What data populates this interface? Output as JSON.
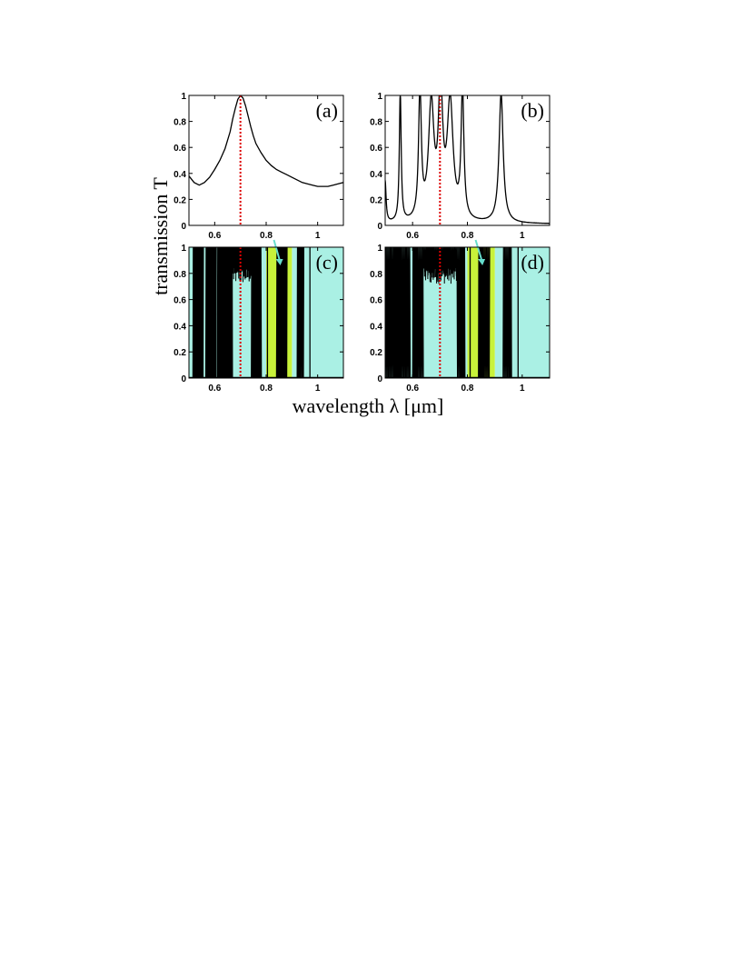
{
  "figure": {
    "ylabel": "transmission T",
    "xlabel": "wavelength λ [μm]"
  },
  "colors": {
    "curve": "#000000",
    "marker": "#dd0000",
    "band_cyan": "#aaf0e4",
    "band_yellow": "#c8f23a",
    "arrow": "#66ddcc"
  },
  "chart_data": [
    {
      "id": "a",
      "type": "line",
      "label": "(a)",
      "xlim": [
        0.5,
        1.1
      ],
      "ylim": [
        0,
        1
      ],
      "xticks": [
        "0.6",
        "0.8",
        "1"
      ],
      "xtick_values": [
        0.6,
        0.8,
        1.0
      ],
      "yticks": [
        "0",
        "0.2",
        "0.4",
        "0.6",
        "0.8",
        "1"
      ],
      "marker_x": 0.7,
      "x": [
        0.5,
        0.52,
        0.54,
        0.56,
        0.58,
        0.6,
        0.62,
        0.64,
        0.66,
        0.67,
        0.68,
        0.69,
        0.7,
        0.71,
        0.72,
        0.73,
        0.74,
        0.75,
        0.76,
        0.78,
        0.8,
        0.82,
        0.84,
        0.86,
        0.88,
        0.9,
        0.92,
        0.94,
        0.96,
        0.98,
        1.0,
        1.02,
        1.04,
        1.06,
        1.08,
        1.1
      ],
      "y": [
        0.38,
        0.33,
        0.31,
        0.33,
        0.37,
        0.43,
        0.5,
        0.59,
        0.72,
        0.82,
        0.9,
        0.97,
        1.0,
        0.98,
        0.92,
        0.84,
        0.76,
        0.69,
        0.63,
        0.56,
        0.5,
        0.46,
        0.43,
        0.41,
        0.39,
        0.37,
        0.35,
        0.33,
        0.32,
        0.31,
        0.3,
        0.3,
        0.3,
        0.31,
        0.32,
        0.33
      ]
    },
    {
      "id": "b",
      "type": "line",
      "label": "(b)",
      "xlim": [
        0.5,
        1.1
      ],
      "ylim": [
        0,
        1
      ],
      "xticks": [
        "0.6",
        "0.8",
        "1"
      ],
      "xtick_values": [
        0.6,
        0.8,
        1.0
      ],
      "yticks": [
        "0",
        "0.2",
        "0.4",
        "0.6",
        "0.8",
        "1"
      ],
      "marker_x": 0.7,
      "baseline": 0.01,
      "peaks": [
        {
          "x": 0.5,
          "w": 0.004,
          "h": 0.32
        },
        {
          "x": 0.555,
          "w": 0.004,
          "h": 1.0
        },
        {
          "x": 0.627,
          "w": 0.006,
          "h": 1.0
        },
        {
          "x": 0.668,
          "w": 0.012,
          "h": 0.88
        },
        {
          "x": 0.702,
          "w": 0.009,
          "h": 1.0
        },
        {
          "x": 0.737,
          "w": 0.013,
          "h": 0.9
        },
        {
          "x": 0.782,
          "w": 0.006,
          "h": 1.0
        },
        {
          "x": 0.923,
          "w": 0.009,
          "h": 1.0
        }
      ]
    },
    {
      "id": "c",
      "type": "line",
      "label": "(c)",
      "xlim": [
        0.5,
        1.1
      ],
      "ylim": [
        0,
        1
      ],
      "xticks": [
        "0.6",
        "0.8",
        "1"
      ],
      "xtick_values": [
        0.6,
        0.8,
        1.0
      ],
      "yticks": [
        "0",
        "0.2",
        "0.4",
        "0.6",
        "0.8",
        "1"
      ],
      "marker_x": 0.7,
      "bands_cyan": [
        [
          0.5,
          0.8
        ],
        [
          0.9,
          1.1
        ]
      ],
      "bands_yellow": [
        [
          0.8,
          0.9
        ]
      ],
      "dense_ranges": [
        [
          0.515,
          0.555
        ],
        [
          0.565,
          0.605
        ],
        [
          0.61,
          0.78
        ],
        [
          0.84,
          0.88
        ],
        [
          0.92,
          0.945
        ]
      ],
      "dense_floor": [
        [
          0.67,
          0.74,
          0.72
        ]
      ],
      "vlines": [
        0.805,
        0.865,
        0.97
      ]
    },
    {
      "id": "d",
      "type": "line",
      "label": "(d)",
      "xlim": [
        0.5,
        1.1
      ],
      "ylim": [
        0,
        1
      ],
      "xticks": [
        "0.6",
        "0.8",
        "1"
      ],
      "xtick_values": [
        0.6,
        0.8,
        1.0
      ],
      "yticks": [
        "0",
        "0.2",
        "0.4",
        "0.6",
        "0.8",
        "1"
      ],
      "marker_x": 0.7,
      "bands_cyan": [
        [
          0.5,
          0.8
        ],
        [
          0.9,
          1.1
        ]
      ],
      "bands_yellow": [
        [
          0.8,
          0.9
        ]
      ],
      "dense_ranges": [
        [
          0.5,
          0.59
        ],
        [
          0.6,
          0.79
        ],
        [
          0.84,
          0.88
        ],
        [
          0.93,
          0.96
        ]
      ],
      "dense_floor": [
        [
          0.64,
          0.76,
          0.72
        ]
      ],
      "vlines": [
        0.52,
        0.545,
        0.575,
        0.81,
        0.855,
        0.985
      ]
    }
  ]
}
